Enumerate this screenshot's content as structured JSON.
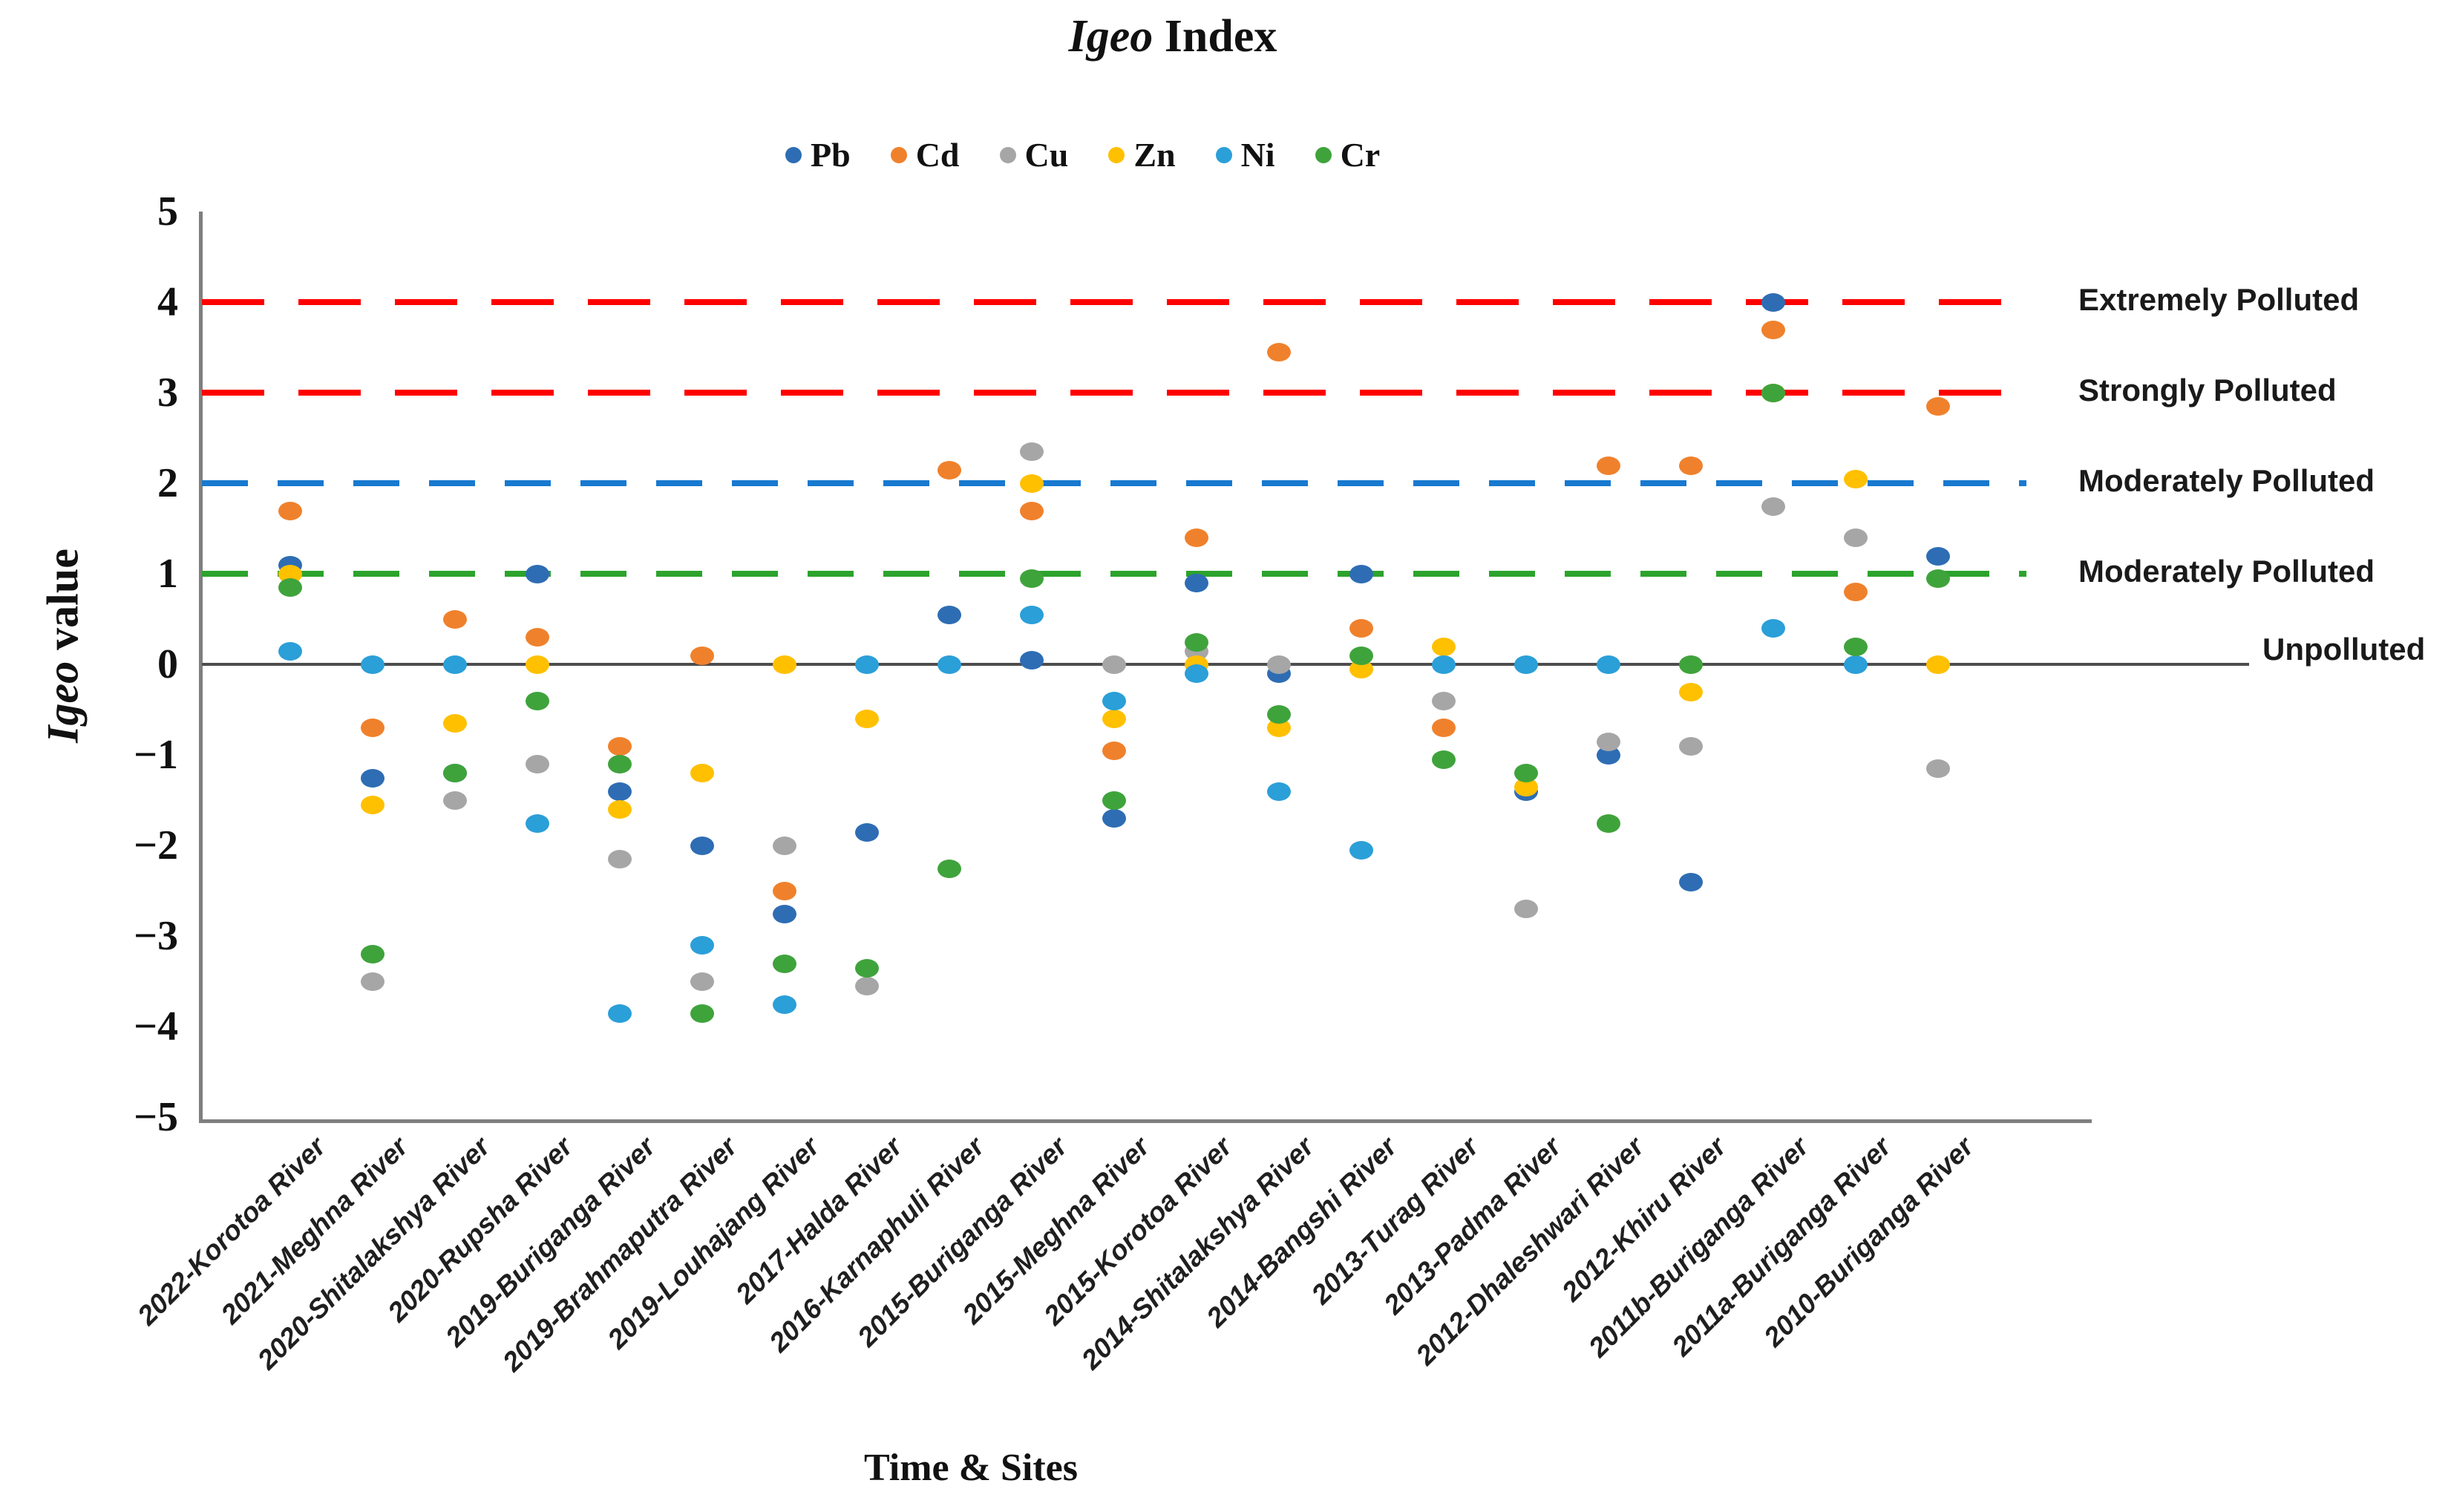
{
  "chart_data": {
    "type": "scatter",
    "title": {
      "italic": "Igeo",
      "rest": " Index",
      "full": "Igeo Index"
    },
    "ylabel": {
      "italic": "Igeo",
      "rest": " value",
      "full": "Igeo value"
    },
    "xlabel": "Time & Sites",
    "ylim": [
      -5,
      5
    ],
    "grid": false,
    "legend_position": "top-center",
    "categories": [
      "2022-Korotoa River",
      "2021-Meghna River",
      "2020-Shitalakshya River",
      "2020-Rupsha River",
      "2019-Buriganga River",
      "2019-Brahmaputra River",
      "2019-Louhajang River",
      "2017-Halda River",
      "2016-Karnaphuli River",
      "2015-Buriganga River",
      "2015-Meghna River",
      "2015-Korotoa River",
      "2014-Shitalakshya River",
      "2014-Bangshi River",
      "2013-Turag River",
      "2013-Padma River",
      "2012-Dhaleshwari River",
      "2012-Khiru River",
      "2011b-Buriganga River",
      "2011a-Buriganga River",
      "2010-Buriganga River"
    ],
    "series": [
      {
        "name": "Pb",
        "color": "#2E6DB4",
        "values": [
          1.1,
          -1.25,
          -1.2,
          1.0,
          -1.4,
          -2.0,
          -2.75,
          -1.85,
          0.55,
          0.05,
          -1.7,
          0.9,
          -0.1,
          1.0,
          null,
          -1.4,
          -1.0,
          -2.4,
          4.0,
          null,
          1.2
        ]
      },
      {
        "name": "Cd",
        "color": "#F0812C",
        "values": [
          1.7,
          -0.7,
          0.5,
          0.3,
          -0.9,
          0.1,
          -2.5,
          null,
          2.15,
          1.7,
          -0.95,
          1.4,
          3.45,
          0.4,
          -0.7,
          null,
          2.2,
          2.2,
          3.7,
          0.8,
          2.85
        ]
      },
      {
        "name": "Cu",
        "color": "#A6A6A6",
        "values": [
          null,
          -3.5,
          -1.5,
          -1.1,
          -2.15,
          -3.5,
          -2.0,
          -3.55,
          null,
          2.35,
          0.0,
          0.15,
          0.0,
          null,
          -0.4,
          -2.7,
          -0.85,
          -0.9,
          1.75,
          1.4,
          -1.15
        ]
      },
      {
        "name": "Zn",
        "color": "#FFC000",
        "values": [
          1.0,
          -1.55,
          -0.65,
          0.0,
          -1.6,
          -1.2,
          0.0,
          -0.6,
          null,
          2.0,
          -0.6,
          0.0,
          -0.7,
          -0.05,
          0.2,
          -1.35,
          null,
          -0.3,
          3.0,
          2.05,
          0.0
        ]
      },
      {
        "name": "Ni",
        "color": "#2B9FD8",
        "values": [
          0.15,
          0.0,
          0.0,
          -1.75,
          -3.85,
          -3.1,
          -3.75,
          0.0,
          0.0,
          0.55,
          -0.4,
          -0.1,
          -1.4,
          -2.05,
          0.0,
          0.0,
          0.0,
          null,
          0.4,
          0.0,
          null
        ]
      },
      {
        "name": "Cr",
        "color": "#3FA33C",
        "values": [
          0.85,
          -3.2,
          -1.2,
          -0.4,
          -1.1,
          -3.85,
          -3.3,
          -3.35,
          -2.25,
          0.95,
          -1.5,
          0.25,
          -0.55,
          0.1,
          -1.05,
          -1.2,
          -1.75,
          0.0,
          3.0,
          0.2,
          0.95
        ]
      }
    ],
    "yticks": [
      {
        "label": "5",
        "value": 5
      },
      {
        "label": "4",
        "value": 4
      },
      {
        "label": "3",
        "value": 3
      },
      {
        "label": "2",
        "value": 2
      },
      {
        "label": "1",
        "value": 1
      },
      {
        "label": "0",
        "value": 0
      },
      {
        "label": "−1",
        "value": -1
      },
      {
        "label": "−2",
        "value": -2
      },
      {
        "label": "−3",
        "value": -3
      },
      {
        "label": "−4",
        "value": -4
      },
      {
        "label": "−5",
        "value": -5
      }
    ],
    "reference_lines": [
      {
        "value": 4,
        "label": "Extremely Polluted",
        "color": "#FE0000",
        "style": "dashed"
      },
      {
        "value": 3,
        "label": "Strongly Polluted",
        "color": "#FE0000",
        "style": "dashed"
      },
      {
        "value": 2,
        "label": "Moderately Polluted",
        "color": "#1779D0",
        "style": "dashed"
      },
      {
        "value": 1,
        "label": "Moderately Polluted",
        "color": "#2CA32C",
        "style": "dashed"
      },
      {
        "value": 0,
        "label": "Unpolluted",
        "color": "#4D4D4D",
        "style": "solid"
      }
    ]
  }
}
